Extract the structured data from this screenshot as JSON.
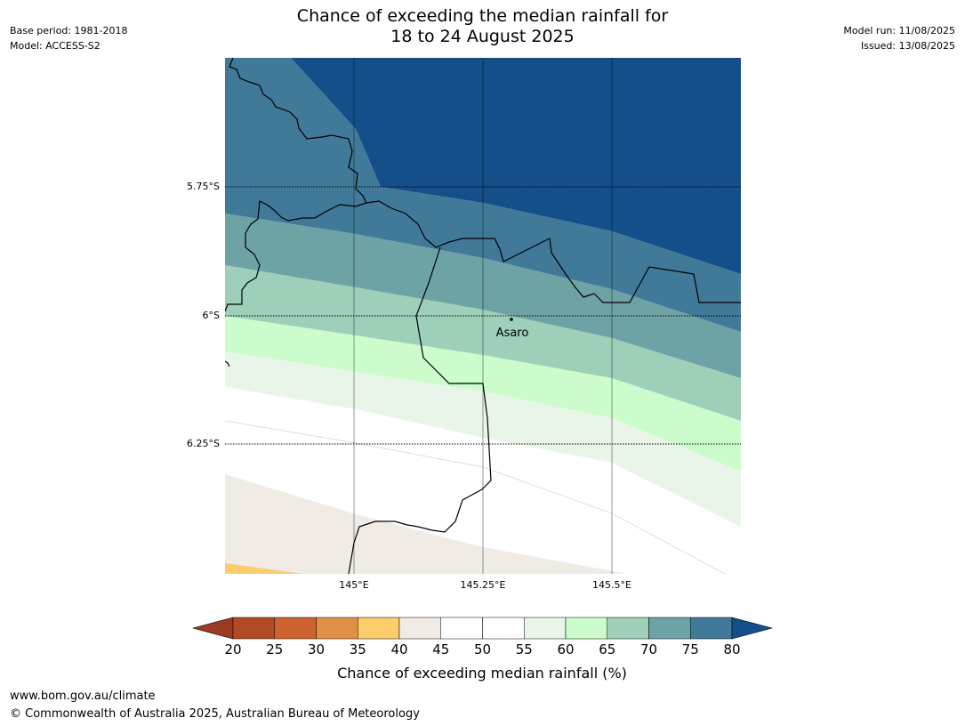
{
  "header": {
    "base_period": "Base period: 1981-2018",
    "model": "Model: ACCESS-S2",
    "model_run": "Model run: 11/08/2025",
    "issued": "Issued: 13/08/2025",
    "title_line1": "Chance of exceeding the median rainfall for",
    "title_line2": "18 to 24 August 2025"
  },
  "map": {
    "place_label": "Asaro",
    "lat_labels": [
      "5.75°S",
      "6°S",
      "6.25°S"
    ],
    "lon_labels": [
      "145°E",
      "145.25°E",
      "145.5°E"
    ]
  },
  "colorbar": {
    "label": "Chance of exceeding median rainfall (%)",
    "ticks": [
      "20",
      "25",
      "30",
      "35",
      "40",
      "45",
      "50",
      "55",
      "60",
      "65",
      "70",
      "75",
      "80"
    ],
    "colors": {
      "under": "#9c3a22",
      "bands": [
        "#b24a25",
        "#cc6330",
        "#e09046",
        "#fdcc6b",
        "#f0ebe5",
        "#ffffff",
        "#ffffff",
        "#eaf5ea",
        "#ccfccc",
        "#9ecfb9",
        "#6da3a4",
        "#417a99"
      ],
      "over": "#154f8a"
    }
  },
  "footer": {
    "url": "www.bom.gov.au/climate",
    "copyright": "© Commonwealth of Australia 2025, Australian Bureau of Meteorology"
  }
}
